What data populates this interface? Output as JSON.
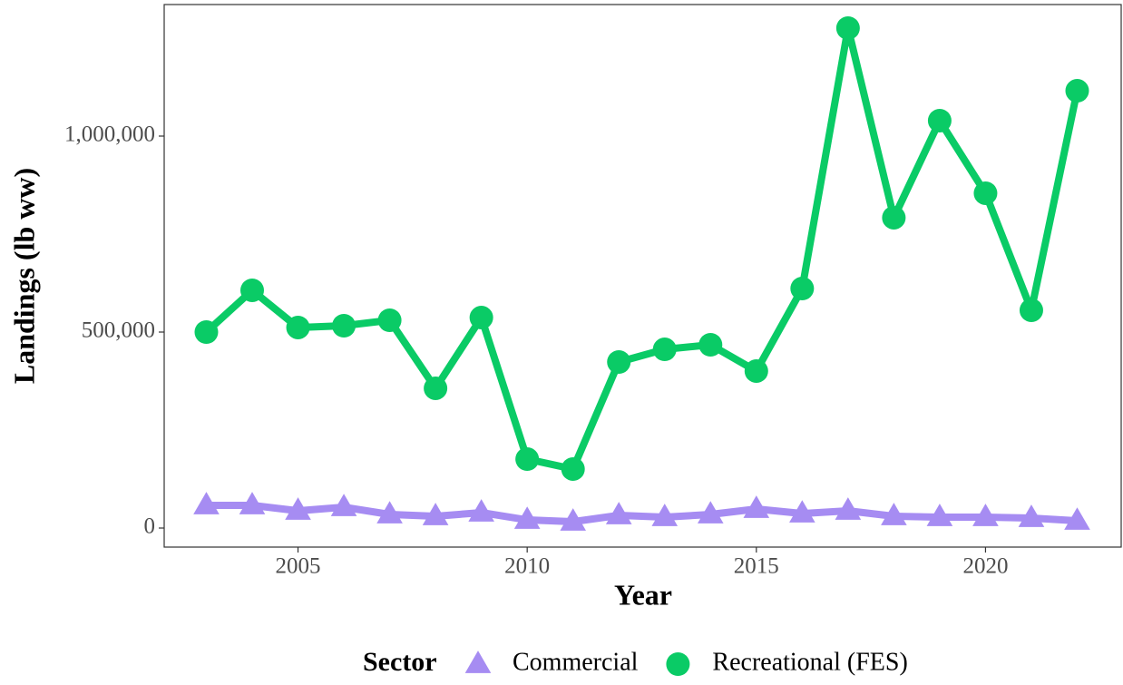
{
  "chart_data": {
    "type": "line",
    "x_label": "Year",
    "y_label": "Landings (lb ww)",
    "legend_title": "Sector",
    "x": [
      2003,
      2004,
      2005,
      2006,
      2007,
      2008,
      2009,
      2010,
      2011,
      2012,
      2013,
      2014,
      2015,
      2016,
      2017,
      2018,
      2019,
      2020,
      2021,
      2022
    ],
    "series": [
      {
        "name": "Commercial",
        "color": "#a68cf2",
        "marker": "triangle",
        "values": [
          57900,
          57900,
          44000,
          53200,
          34700,
          30100,
          39400,
          20800,
          16200,
          32400,
          27800,
          34700,
          48600,
          37000,
          44000,
          30100,
          27800,
          27800,
          25500,
          18500
        ]
      },
      {
        "name": "Recreational (FES)",
        "color": "#0acb66",
        "marker": "circle",
        "values": [
          500000,
          606500,
          511600,
          516200,
          530100,
          356500,
          537000,
          175900,
          150500,
          423600,
          456000,
          467600,
          400500,
          611100,
          1275500,
          791700,
          1039400,
          854200,
          555600,
          1115700
        ]
      }
    ],
    "xlim": [
      2002.08,
      2022.96
    ],
    "ylim": [
      -48611,
      1335648
    ],
    "xticks": [
      2005,
      2010,
      2015,
      2020
    ],
    "yticks": [
      0,
      {
        "value": 500000,
        "label": "500,000"
      },
      {
        "value": 1000000,
        "label": "1,000,000"
      }
    ],
    "grid": false,
    "legend": "bottom"
  }
}
